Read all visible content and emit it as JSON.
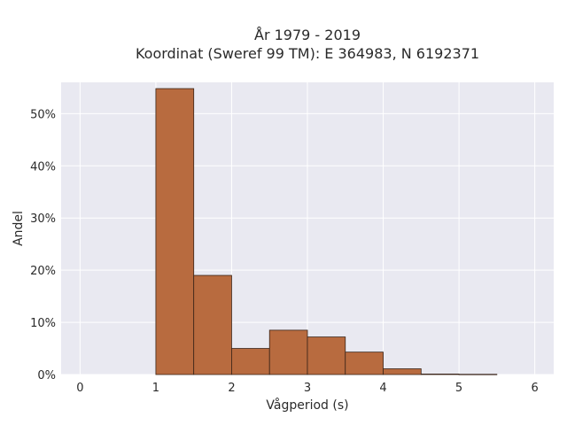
{
  "chart_data": {
    "type": "bar",
    "title_line1": "År 1979 - 2019",
    "title_line2": "Koordinat (Sweref 99 TM): E 364983, N 6192371",
    "xlabel": "Vågperiod (s)",
    "ylabel": "Andel",
    "xlim": [
      -0.25,
      6.25
    ],
    "ylim": [
      0,
      0.56
    ],
    "x_ticks": [
      0,
      1,
      2,
      3,
      4,
      5,
      6
    ],
    "x_tick_labels": [
      "0",
      "1",
      "2",
      "3",
      "4",
      "5",
      "6"
    ],
    "y_ticks": [
      0,
      0.1,
      0.2,
      0.3,
      0.4,
      0.5
    ],
    "y_tick_labels": [
      "0%",
      "10%",
      "20%",
      "30%",
      "40%",
      "50%"
    ],
    "bin_width": 0.5,
    "bins": [
      {
        "start": 1.0,
        "value": 0.548
      },
      {
        "start": 1.5,
        "value": 0.19
      },
      {
        "start": 2.0,
        "value": 0.05
      },
      {
        "start": 2.5,
        "value": 0.085
      },
      {
        "start": 3.0,
        "value": 0.072
      },
      {
        "start": 3.5,
        "value": 0.043
      },
      {
        "start": 4.0,
        "value": 0.011
      },
      {
        "start": 4.5,
        "value": 0.001
      },
      {
        "start": 5.0,
        "value": 0.0005
      }
    ],
    "grid": true,
    "colors": {
      "plot_background": "#e9e9f1",
      "grid": "#ffffff",
      "bar_fill": "#b86b3f",
      "bar_edge": "#3a2418"
    }
  }
}
